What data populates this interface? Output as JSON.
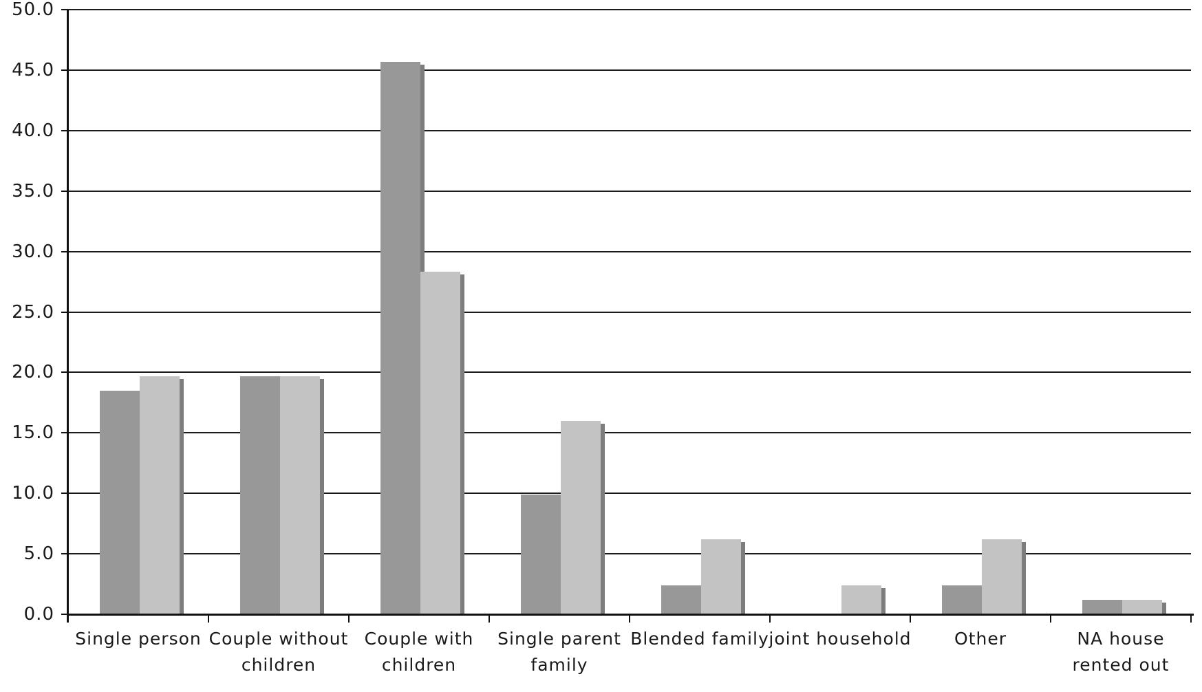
{
  "chart_data": {
    "type": "bar",
    "title": "",
    "xlabel": "",
    "ylabel": "",
    "categories": [
      "Single person",
      "Couple without children",
      "Couple with children",
      "Single parent family",
      "Blended family",
      "joint household",
      "Other",
      "NA house rented out"
    ],
    "category_lines": [
      [
        "Single person"
      ],
      [
        "Couple without",
        "children"
      ],
      [
        "Couple with",
        "children"
      ],
      [
        "Single parent",
        "family"
      ],
      [
        "Blended family"
      ],
      [
        "joint household"
      ],
      [
        "Other"
      ],
      [
        "NA house",
        "rented out"
      ]
    ],
    "series": [
      {
        "name": "series-1-dark",
        "color": "#989898",
        "values": [
          18.5,
          19.7,
          45.7,
          9.9,
          2.4,
          0,
          2.4,
          1.2
        ]
      },
      {
        "name": "series-2-light",
        "color": "#c3c3c3",
        "values": [
          19.7,
          19.7,
          28.3,
          16.0,
          6.2,
          2.4,
          6.2,
          1.2
        ]
      }
    ],
    "bar_style": "3d-drop-shadow",
    "shadow_color": "#7d7d7d",
    "ylim": [
      0,
      50
    ],
    "ytick_step": 5,
    "ytick_decimals": 1,
    "grid": true,
    "legend": "none",
    "axis_color": "#111111",
    "grid_color": "#1a1a1a",
    "text_color": "#1a1a1a",
    "background": "#ffffff"
  }
}
